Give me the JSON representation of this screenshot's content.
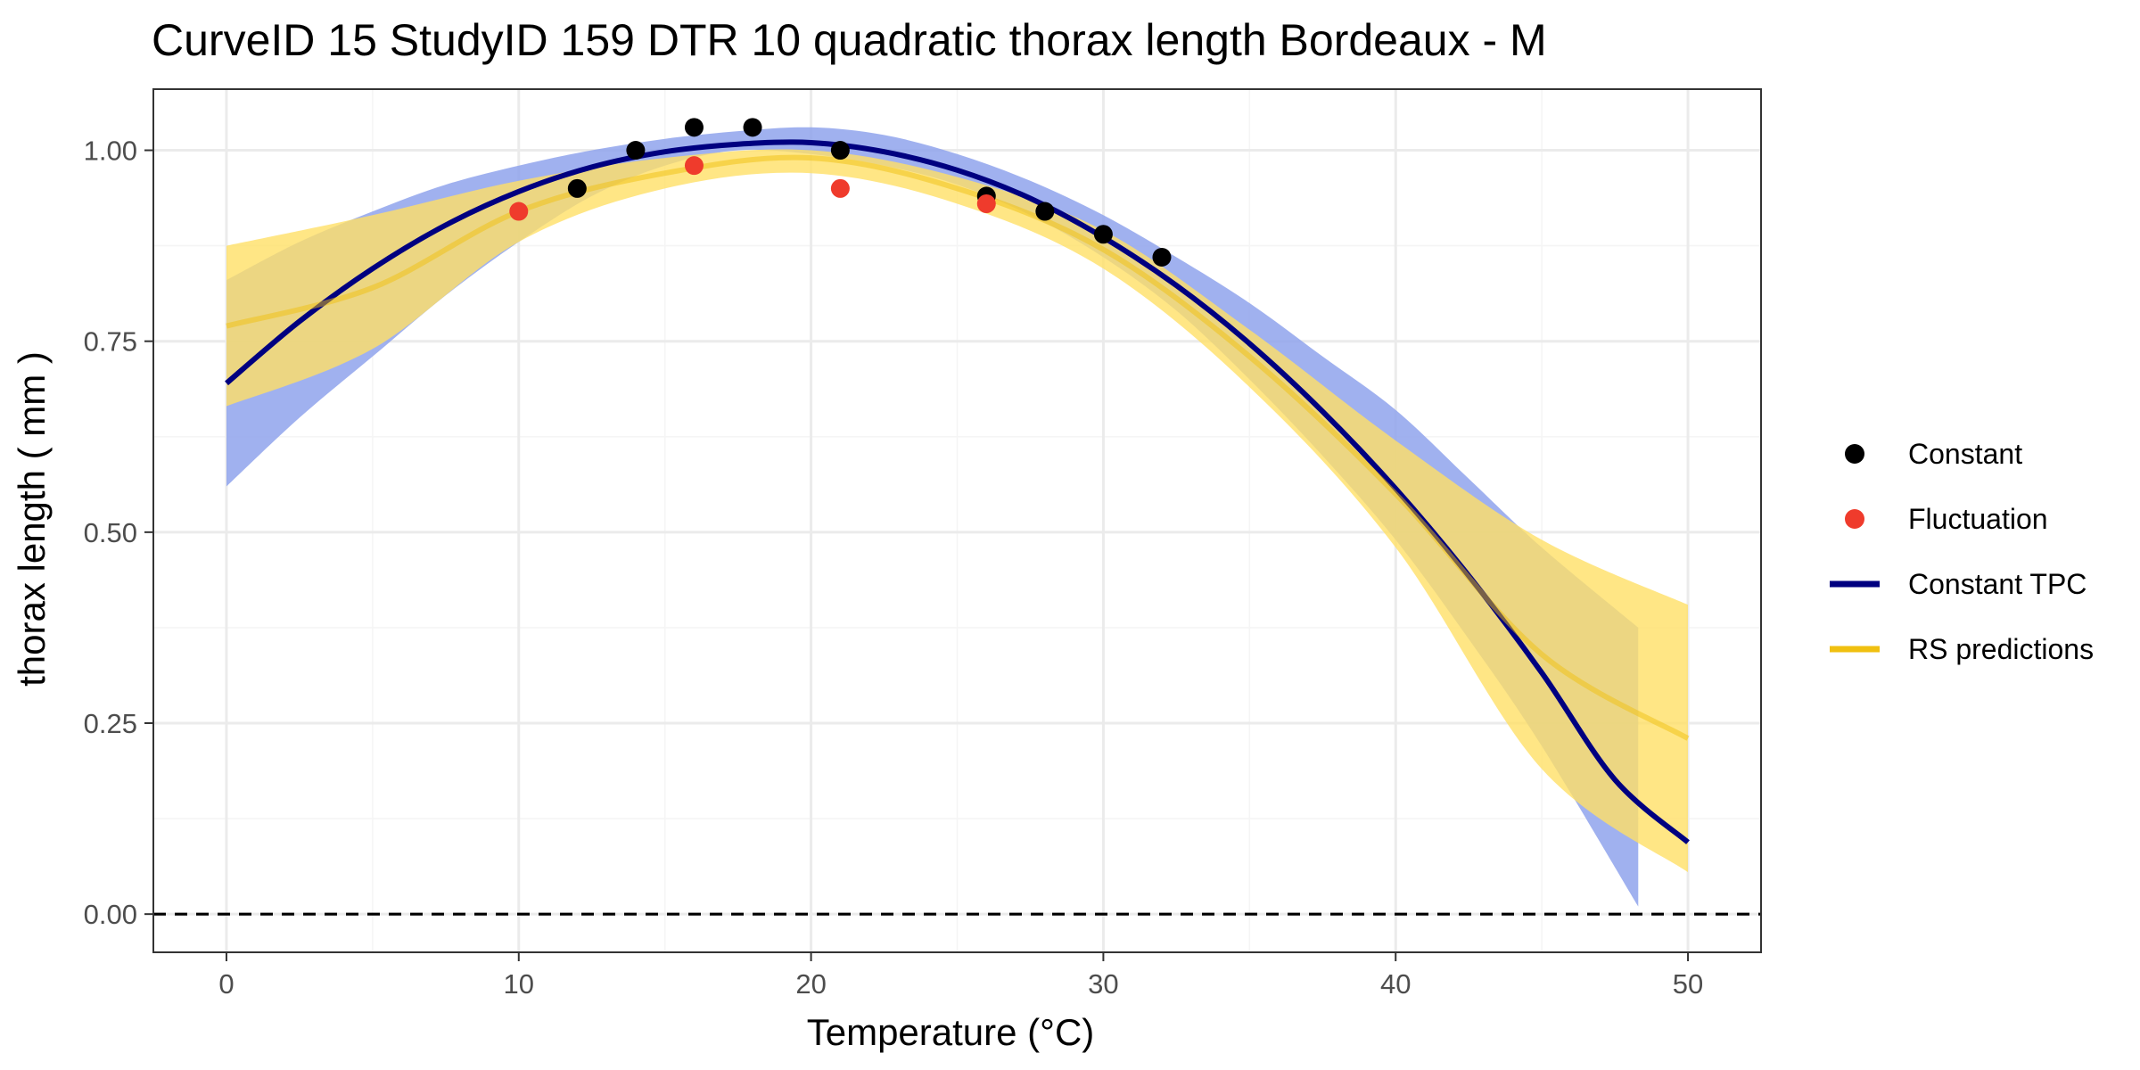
{
  "chart_data": {
    "type": "line",
    "title": "CurveID 15 StudyID 159 DTR 10 quadratic thorax length Bordeaux - M",
    "xlabel": "Temperature (°C)",
    "ylabel": "thorax length ( mm )",
    "xlim": [
      -2.5,
      52.5
    ],
    "ylim": [
      -0.05,
      1.08
    ],
    "x_ticks": [
      0,
      10,
      20,
      30,
      40,
      50
    ],
    "y_ticks": [
      0,
      0.25,
      0.5,
      0.75,
      1
    ],
    "y_tick_labels": [
      "0.00",
      "0.25",
      "0.50",
      "0.75",
      "1.00"
    ],
    "grid": true,
    "legend_position": "right",
    "reference_line": {
      "y": 0,
      "style": "dashed",
      "color": "#000000"
    },
    "legend": [
      {
        "label": "Constant",
        "kind": "point",
        "color": "#000000"
      },
      {
        "label": "Fluctuation",
        "kind": "point",
        "color": "#ef3b2c"
      },
      {
        "label": "Constant TPC",
        "kind": "line",
        "color": "#000080"
      },
      {
        "label": "RS predictions",
        "kind": "line",
        "color": "#f0c010"
      }
    ],
    "series": [
      {
        "name": "Constant",
        "kind": "points",
        "color": "#000000",
        "x": [
          14,
          16,
          18,
          21,
          12,
          26,
          28,
          30,
          32
        ],
        "y": [
          1.0,
          1.03,
          1.03,
          1.0,
          0.95,
          0.94,
          0.92,
          0.89,
          0.86
        ]
      },
      {
        "name": "Fluctuation",
        "kind": "points",
        "color": "#ef3b2c",
        "x": [
          10,
          16,
          21,
          26
        ],
        "y": [
          0.92,
          0.98,
          0.95,
          0.93
        ]
      },
      {
        "name": "Constant TPC",
        "kind": "line",
        "color": "#000080",
        "x": [
          0,
          2.5,
          5,
          7.5,
          10,
          12.5,
          15,
          17.5,
          20,
          22.5,
          25,
          27.5,
          30,
          32.5,
          35,
          37.5,
          40,
          42.5,
          45,
          47.5,
          50
        ],
        "y": [
          0.695,
          0.776,
          0.845,
          0.902,
          0.946,
          0.978,
          0.998,
          1.008,
          1.01,
          0.998,
          0.974,
          0.937,
          0.886,
          0.823,
          0.747,
          0.658,
          0.557,
          0.443,
          0.316,
          0.176,
          0.094
        ],
        "ci_x": [
          0,
          2.5,
          5,
          7.5,
          10,
          12.5,
          15,
          17.5,
          20,
          22.5,
          25,
          27.5,
          30,
          32.5,
          35,
          37.5,
          40,
          42.5,
          45,
          48.3
        ],
        "ci_lower": [
          0.56,
          0.65,
          0.73,
          0.81,
          0.88,
          0.94,
          0.98,
          1.0,
          0.995,
          0.98,
          0.955,
          0.915,
          0.86,
          0.79,
          0.7,
          0.6,
          0.49,
          0.36,
          0.22,
          0.01
        ],
        "ci_upper": [
          0.83,
          0.88,
          0.92,
          0.955,
          0.98,
          1.0,
          1.015,
          1.025,
          1.03,
          1.02,
          0.995,
          0.96,
          0.915,
          0.86,
          0.8,
          0.73,
          0.66,
          0.57,
          0.48,
          0.375
        ]
      },
      {
        "name": "RS predictions",
        "kind": "line",
        "color": "#f0c010",
        "x": [
          0,
          5,
          10,
          15,
          20,
          25,
          30,
          35,
          40,
          45,
          50
        ],
        "y": [
          0.77,
          0.82,
          0.92,
          0.97,
          0.99,
          0.95,
          0.87,
          0.73,
          0.55,
          0.34,
          0.23
        ],
        "ci_x": [
          0,
          5,
          10,
          15,
          20,
          25,
          30,
          35,
          40,
          45,
          50
        ],
        "ci_lower": [
          0.665,
          0.74,
          0.88,
          0.95,
          0.97,
          0.93,
          0.845,
          0.69,
          0.48,
          0.19,
          0.055
        ],
        "ci_upper": [
          0.875,
          0.915,
          0.96,
          0.99,
          1.0,
          0.965,
          0.895,
          0.765,
          0.62,
          0.49,
          0.405
        ]
      }
    ]
  },
  "colors": {
    "tpc_band": "#8fa3ec",
    "rs_band": "#ffe066",
    "grid_major": "#ebebeb",
    "grid_minor": "#f5f5f5",
    "panel_border": "#333333"
  }
}
